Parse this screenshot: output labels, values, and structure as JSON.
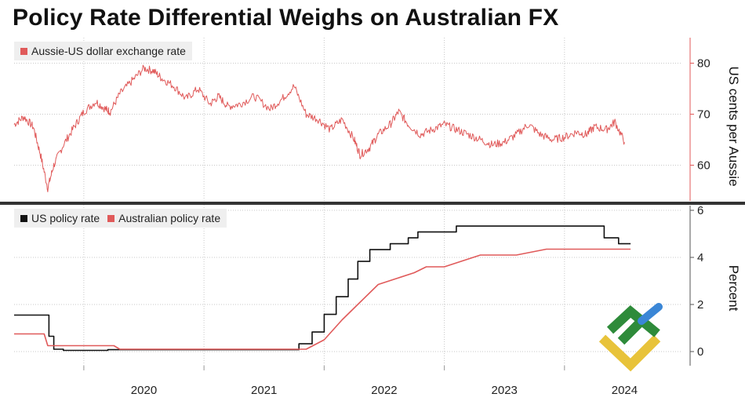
{
  "title": "Policy Rate Differential Weighs on Australian FX",
  "colors": {
    "red": "#e05a5a",
    "black": "#111111",
    "grid": "#c8c8c8",
    "legend_bg": "#efefef",
    "divider": "#333333"
  },
  "x_tick_labels": [
    "2020",
    "2021",
    "2022",
    "2023",
    "2024"
  ],
  "chart_data": [
    {
      "type": "line",
      "ylabel": "US cents per Aussie",
      "ylim": [
        53,
        85
      ],
      "yticks": [
        60,
        70,
        80
      ],
      "xlim": [
        2019.42,
        2024.98
      ],
      "legend": [
        "Aussie-US dollar exchange rate"
      ],
      "series": [
        {
          "name": "Aussie-US dollar exchange rate",
          "x": [
            2019.42,
            2019.5,
            2019.58,
            2019.64,
            2019.7,
            2019.75,
            2019.83,
            2019.92,
            2020.0,
            2020.1,
            2020.18,
            2020.22,
            2020.3,
            2020.4,
            2020.5,
            2020.58,
            2020.65,
            2020.75,
            2020.85,
            2020.95,
            2021.05,
            2021.12,
            2021.2,
            2021.3,
            2021.42,
            2021.55,
            2021.65,
            2021.75,
            2021.85,
            2021.95,
            2022.05,
            2022.15,
            2022.25,
            2022.3,
            2022.38,
            2022.45,
            2022.55,
            2022.62,
            2022.7,
            2022.8,
            2022.9,
            2023.0,
            2023.1,
            2023.2,
            2023.3,
            2023.4,
            2023.5,
            2023.6,
            2023.7,
            2023.8,
            2023.9,
            2024.0,
            2024.1,
            2024.18,
            2024.25,
            2024.35,
            2024.42,
            2024.5
          ],
          "values": [
            68,
            69.5,
            67.5,
            62,
            55.5,
            60,
            64,
            67.5,
            70.5,
            72.5,
            71,
            70.5,
            74,
            76.5,
            79,
            78.5,
            77,
            75.5,
            73,
            75,
            72,
            73.5,
            71.5,
            72,
            73.5,
            71,
            73,
            75.5,
            70,
            69,
            67,
            69,
            65,
            62,
            63.5,
            66,
            68,
            70.5,
            68,
            66,
            67,
            68,
            67,
            66,
            65,
            64,
            64.5,
            66,
            68,
            66,
            65,
            65.5,
            66.5,
            66,
            67.5,
            67,
            68.5,
            64.5
          ]
        }
      ]
    },
    {
      "type": "line",
      "ylabel": "Percent",
      "ylim": [
        -0.6,
        6.2
      ],
      "yticks": [
        0,
        2,
        4,
        6
      ],
      "xlim": [
        2019.42,
        2024.98
      ],
      "legend": [
        "US policy rate",
        "Australian policy rate"
      ],
      "series": [
        {
          "name": "US policy rate",
          "step": true,
          "x": [
            2019.42,
            2019.67,
            2019.71,
            2019.75,
            2019.83,
            2020.17,
            2020.2,
            2021.08,
            2021.15,
            2021.7,
            2021.79,
            2021.9,
            2022.0,
            2022.1,
            2022.2,
            2022.28,
            2022.38,
            2022.47,
            2022.55,
            2022.63,
            2022.7,
            2022.78,
            2022.87,
            2022.95,
            2023.1,
            2023.25,
            2023.35,
            2023.45,
            2024.3,
            2024.33,
            2024.38,
            2024.45,
            2024.55
          ],
          "values": [
            1.55,
            1.55,
            0.65,
            0.1,
            0.05,
            0.05,
            0.08,
            0.08,
            0.08,
            0.08,
            0.33,
            0.83,
            1.58,
            2.33,
            3.08,
            3.83,
            4.33,
            4.33,
            4.58,
            4.58,
            4.83,
            5.08,
            5.08,
            5.08,
            5.33,
            5.33,
            5.33,
            5.33,
            5.33,
            4.83,
            4.83,
            4.58,
            4.58
          ]
        },
        {
          "name": "Australian policy rate",
          "x": [
            2019.42,
            2019.67,
            2019.7,
            2020.25,
            2020.3,
            2021.75,
            2021.85,
            2022.0,
            2022.15,
            2022.3,
            2022.45,
            2022.6,
            2022.75,
            2022.85,
            2023.0,
            2023.15,
            2023.3,
            2023.45,
            2023.6,
            2023.85,
            2024.55
          ],
          "values": [
            0.75,
            0.75,
            0.25,
            0.25,
            0.1,
            0.1,
            0.1,
            0.5,
            1.35,
            2.1,
            2.85,
            3.1,
            3.35,
            3.6,
            3.6,
            3.85,
            4.1,
            4.1,
            4.1,
            4.35,
            4.35
          ]
        }
      ]
    }
  ]
}
